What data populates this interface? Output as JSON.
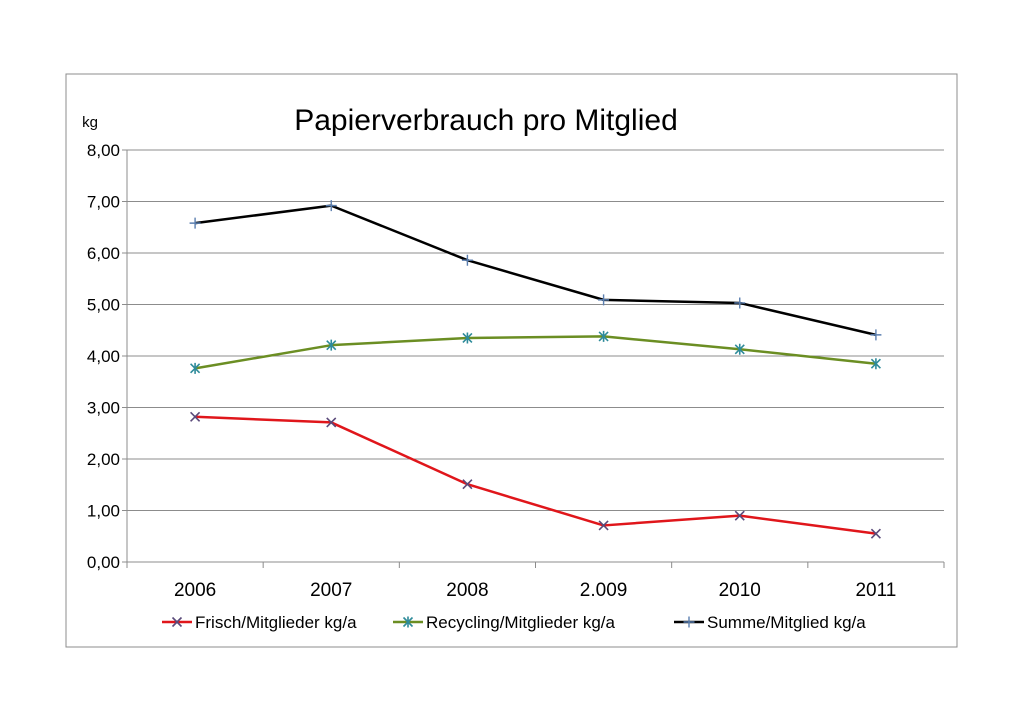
{
  "chart_data": {
    "type": "line",
    "title": "Papierverbrauch pro Mitglied",
    "ylabel": "kg",
    "xlabel": "",
    "categories": [
      "2006",
      "2007",
      "2008",
      "2.009",
      "2010",
      "2011"
    ],
    "ylim": [
      0,
      8
    ],
    "yticks": [
      "0,00",
      "1,00",
      "2,00",
      "3,00",
      "4,00",
      "5,00",
      "6,00",
      "7,00",
      "8,00"
    ],
    "grid": true,
    "legend_position": "bottom",
    "series": [
      {
        "name": "Frisch/Mitglieder kg/a",
        "color": "#e0161b",
        "marker": "x",
        "values": [
          2.82,
          2.71,
          1.51,
          0.71,
          0.9,
          0.55
        ]
      },
      {
        "name": "Recycling/Mitglieder kg/a",
        "color": "#6b8e23",
        "marker": "star",
        "values": [
          3.76,
          4.21,
          4.35,
          4.38,
          4.13,
          3.85
        ]
      },
      {
        "name": "Summe/Mitglied kg/a",
        "color": "#000000",
        "marker": "plus",
        "values": [
          6.58,
          6.92,
          5.86,
          5.09,
          5.03,
          4.41
        ]
      }
    ]
  }
}
